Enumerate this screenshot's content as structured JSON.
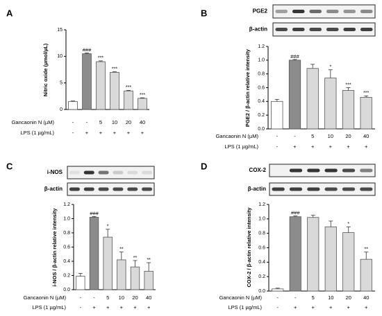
{
  "chart_data": [
    {
      "type": "bar",
      "panel_label": "A",
      "ylabel": "Nitric oxide (µmol/µL)",
      "ylim": [
        0,
        15
      ],
      "yticks": [
        "0",
        "5",
        "10",
        "15"
      ],
      "values": [
        1.5,
        10.5,
        9.0,
        7.0,
        3.5,
        2.1
      ],
      "errors": [
        0.1,
        0.15,
        0.15,
        0.1,
        0.1,
        0.1
      ],
      "significance": [
        "",
        "###",
        "***",
        "***",
        "***",
        "***"
      ],
      "fills": [
        "#ffffff",
        "#8c8c8c",
        "#d9d9d9",
        "#d9d9d9",
        "#d9d9d9",
        "#d9d9d9"
      ],
      "rows": [
        {
          "label": "Gancaonin N (µM)",
          "values": [
            "-",
            "-",
            "5",
            "10",
            "20",
            "40"
          ]
        },
        {
          "label": "LPS (1 µg/mL)",
          "values": [
            "-",
            "+",
            "+",
            "+",
            "+",
            "+"
          ]
        }
      ]
    },
    {
      "type": "bar",
      "panel_label": "B",
      "ylabel": "PGE2 / β-actin relative intensity",
      "ylim": [
        0,
        1.2
      ],
      "yticks": [
        "0.0",
        "0.2",
        "0.4",
        "0.6",
        "0.8",
        "1.0",
        "1.2"
      ],
      "values": [
        0.4,
        1.0,
        0.88,
        0.74,
        0.56,
        0.46
      ],
      "errors": [
        0.03,
        0.01,
        0.06,
        0.12,
        0.04,
        0.02
      ],
      "significance": [
        "",
        "###",
        "",
        "*",
        "***",
        "***"
      ],
      "fills": [
        "#ffffff",
        "#8c8c8c",
        "#d9d9d9",
        "#d9d9d9",
        "#d9d9d9",
        "#d9d9d9"
      ],
      "blots": [
        {
          "label": "PGE2",
          "intensities": [
            0.35,
            0.85,
            0.6,
            0.45,
            0.4,
            0.45
          ]
        },
        {
          "label": "β-actin",
          "intensities": [
            0.75,
            0.8,
            0.75,
            0.75,
            0.8,
            0.8
          ]
        }
      ],
      "rows": [
        {
          "label": "Gancaonin N (µM)",
          "values": [
            "-",
            "-",
            "5",
            "10",
            "20",
            "40"
          ]
        },
        {
          "label": "LPS (1 µg/mL)",
          "values": [
            "-",
            "+",
            "+",
            "+",
            "+",
            "+"
          ]
        }
      ]
    },
    {
      "type": "bar",
      "panel_label": "C",
      "ylabel": "i-NOS / β-actin relative intensity",
      "ylim": [
        0,
        1.2
      ],
      "yticks": [
        "0.0",
        "0.2",
        "0.4",
        "0.6",
        "0.8",
        "1.0",
        "1.2"
      ],
      "values": [
        0.19,
        1.02,
        0.74,
        0.42,
        0.32,
        0.26
      ],
      "errors": [
        0.04,
        0.01,
        0.11,
        0.11,
        0.09,
        0.12
      ],
      "significance": [
        "",
        "###",
        "*",
        "**",
        "**",
        "**"
      ],
      "fills": [
        "#ffffff",
        "#8c8c8c",
        "#d9d9d9",
        "#d9d9d9",
        "#d9d9d9",
        "#d9d9d9"
      ],
      "blots": [
        {
          "label": "i-NOS",
          "intensities": [
            0.05,
            0.85,
            0.55,
            0.15,
            0.08,
            0.08
          ]
        },
        {
          "label": "β-actin",
          "intensities": [
            0.8,
            0.8,
            0.75,
            0.75,
            0.75,
            0.75
          ]
        }
      ],
      "rows": [
        {
          "label": "Gancaonin N (µM)",
          "values": [
            "-",
            "-",
            "5",
            "10",
            "20",
            "40"
          ]
        },
        {
          "label": "LPS (1 µg/mL)",
          "values": [
            "-",
            "+",
            "+",
            "+",
            "+",
            "+"
          ]
        }
      ]
    },
    {
      "type": "bar",
      "panel_label": "D",
      "ylabel": "COX-2 / β-actin relative intensity",
      "ylim": [
        0,
        1.2
      ],
      "yticks": [
        "0.0",
        "0.2",
        "0.4",
        "0.6",
        "0.8",
        "1.0",
        "1.2"
      ],
      "values": [
        0.03,
        1.03,
        1.02,
        0.89,
        0.81,
        0.44
      ],
      "errors": [
        0.01,
        0.01,
        0.03,
        0.08,
        0.08,
        0.1
      ],
      "significance": [
        "",
        "###",
        "",
        "",
        "*",
        "**"
      ],
      "fills": [
        "#ffffff",
        "#8c8c8c",
        "#d9d9d9",
        "#d9d9d9",
        "#d9d9d9",
        "#d9d9d9"
      ],
      "blots": [
        {
          "label": "COX-2",
          "intensities": [
            0.0,
            0.85,
            0.85,
            0.85,
            0.75,
            0.5
          ]
        },
        {
          "label": "β-actin",
          "intensities": [
            0.8,
            0.8,
            0.8,
            0.75,
            0.75,
            0.75
          ]
        }
      ],
      "rows": [
        {
          "label": "Gancaonin N (µM)",
          "values": [
            "-",
            "-",
            "5",
            "10",
            "20",
            "40"
          ]
        },
        {
          "label": "LPS (1 µg/mL)",
          "values": [
            "-",
            "+",
            "+",
            "+",
            "+",
            "+"
          ]
        }
      ]
    }
  ]
}
